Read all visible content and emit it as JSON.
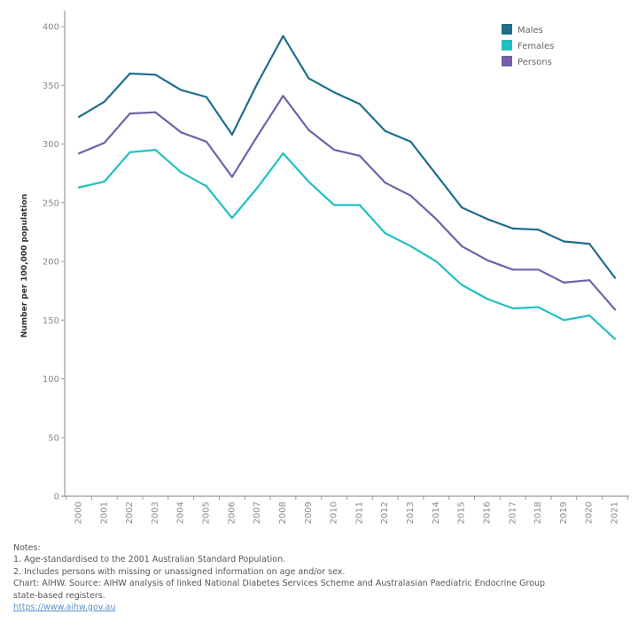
{
  "chart_data": {
    "type": "line",
    "title": "",
    "xlabel": "",
    "ylabel": "Number per 100,000 population",
    "ylim": [
      0,
      410
    ],
    "yticks": [
      0,
      50,
      100,
      150,
      200,
      250,
      300,
      350,
      400
    ],
    "grid": false,
    "legend_position": "top-right",
    "x": [
      "2000",
      "2001",
      "2002",
      "2003",
      "2004",
      "2005",
      "2006",
      "2007",
      "2008",
      "2009",
      "2010",
      "2011",
      "2012",
      "2013",
      "2014",
      "2015",
      "2016",
      "2017",
      "2018",
      "2019",
      "2020",
      "2021"
    ],
    "series": [
      {
        "name": "Males",
        "color": "#1f6e8c",
        "values": [
          323,
          336,
          360,
          359,
          346,
          340,
          308,
          352,
          392,
          356,
          344,
          334,
          311,
          302,
          274,
          246,
          236,
          228,
          227,
          217,
          215,
          186
        ]
      },
      {
        "name": "Females",
        "color": "#20c0c0",
        "values": [
          263,
          268,
          293,
          295,
          276,
          264,
          237,
          263,
          292,
          268,
          248,
          248,
          224,
          213,
          200,
          180,
          168,
          160,
          161,
          150,
          154,
          134
        ]
      },
      {
        "name": "Persons",
        "color": "#7360a8",
        "values": [
          292,
          301,
          326,
          327,
          310,
          302,
          272,
          307,
          341,
          312,
          295,
          290,
          267,
          256,
          236,
          213,
          201,
          193,
          193,
          182,
          184,
          159
        ]
      }
    ]
  },
  "notes": {
    "heading": "Notes:",
    "lines": [
      "1. Age-standardised to the 2001 Australian Standard Population.",
      "2. Includes persons with missing or unassigned information on age and/or sex.",
      "Chart: AIHW. Source: AIHW analysis of linked National Diabetes Services Scheme and Australasian Paediatric Endocrine Group",
      "state-based registers."
    ],
    "link": "https://www.aihw.gov.au"
  }
}
